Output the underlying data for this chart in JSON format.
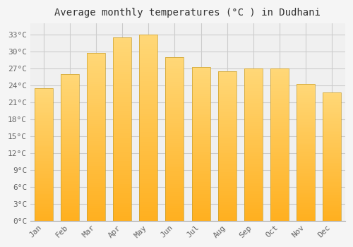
{
  "title": "Average monthly temperatures (°C ) in Dudhani",
  "months": [
    "Jan",
    "Feb",
    "Mar",
    "Apr",
    "May",
    "Jun",
    "Jul",
    "Aug",
    "Sep",
    "Oct",
    "Nov",
    "Dec"
  ],
  "values": [
    23.5,
    26.0,
    29.8,
    32.5,
    33.0,
    29.0,
    27.2,
    26.5,
    27.0,
    27.0,
    24.2,
    22.8
  ],
  "bar_color_top": "#FFB020",
  "bar_color_bottom": "#FFD878",
  "bar_outline_color": "#C8A030",
  "ylim": [
    0,
    35
  ],
  "yticks": [
    0,
    3,
    6,
    9,
    12,
    15,
    18,
    21,
    24,
    27,
    30,
    33
  ],
  "ytick_labels": [
    "0°C",
    "3°C",
    "6°C",
    "9°C",
    "12°C",
    "15°C",
    "18°C",
    "21°C",
    "24°C",
    "27°C",
    "30°C",
    "33°C"
  ],
  "bg_color": "#f5f5f5",
  "plot_bg_color": "#f0f0f0",
  "grid_color": "#cccccc",
  "title_fontsize": 10,
  "tick_fontsize": 8,
  "font_family": "monospace",
  "bar_width": 0.7
}
